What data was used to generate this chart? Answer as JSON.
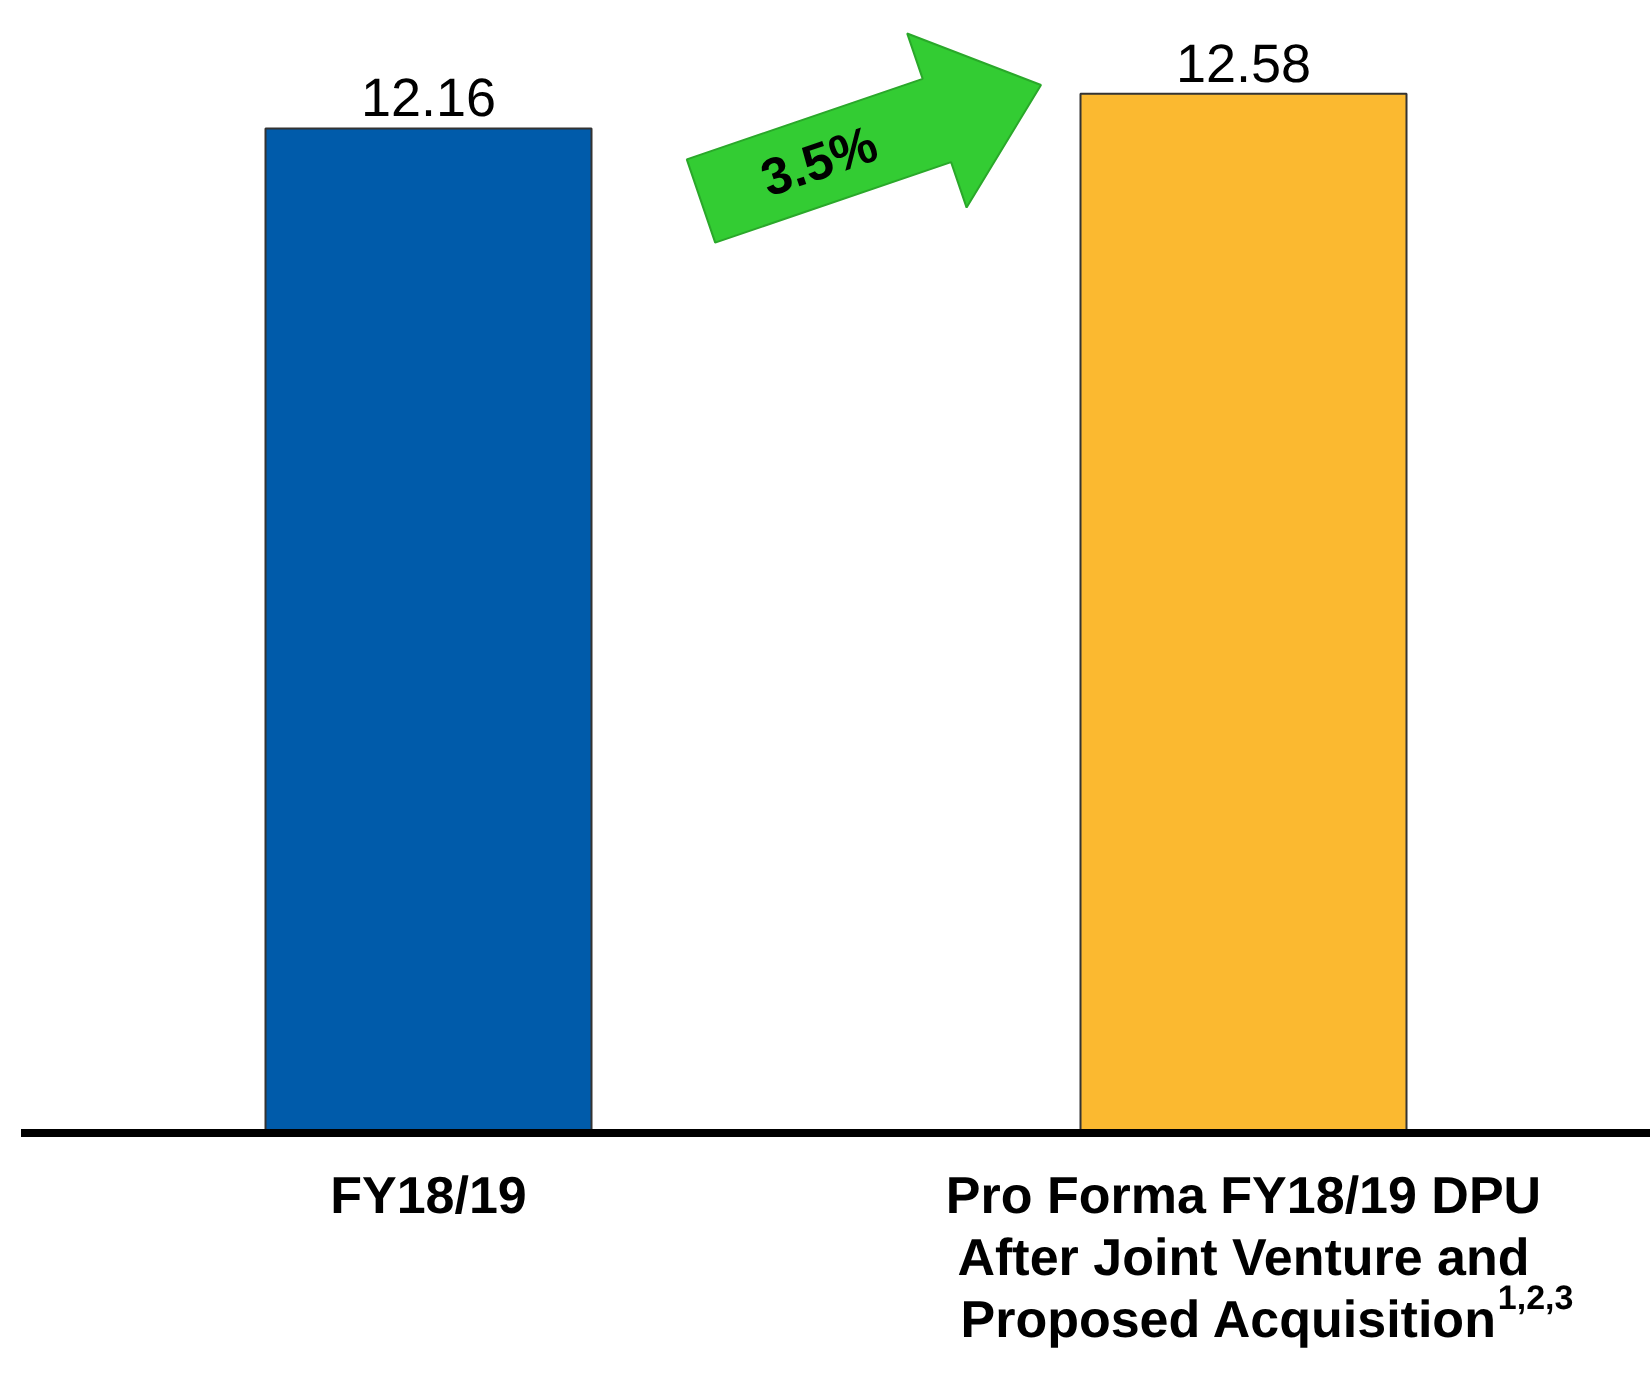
{
  "chart_data": {
    "type": "bar",
    "categories": [
      "FY18/19",
      "Pro Forma FY18/19 DPU After Joint Venture and Proposed Acquisition$^{1,2,3}$"
    ],
    "values": [
      12.16,
      12.58
    ],
    "colors": [
      "#005baa",
      "#fbb930"
    ],
    "data_labels": true,
    "annotations": [
      "3.5%"
    ]
  }
}
